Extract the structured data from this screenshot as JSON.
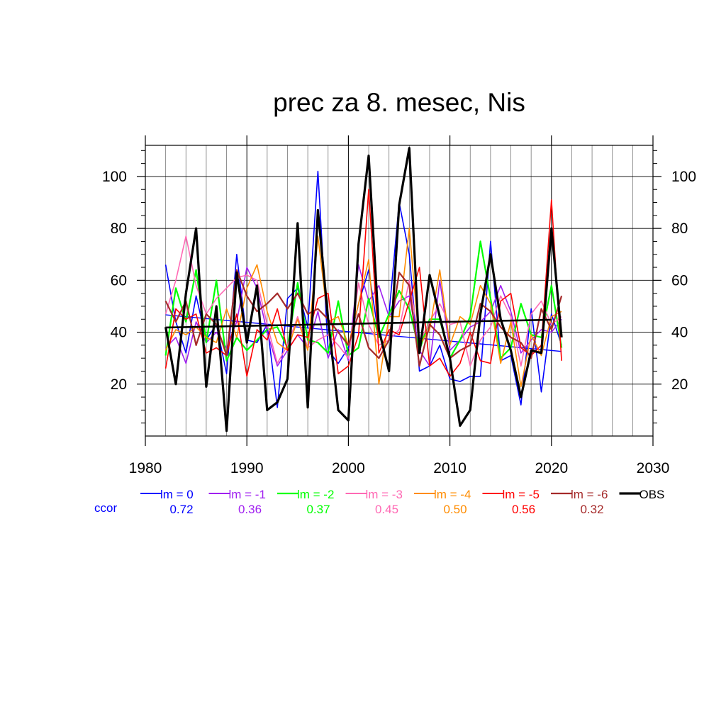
{
  "chart_data": {
    "type": "line",
    "title": "prec za 8. mesec, Nis",
    "xlabel": "",
    "ylabel": "",
    "xlim": [
      1980,
      2030
    ],
    "ylim": [
      0,
      112
    ],
    "x_ticks": [
      1980,
      1990,
      2000,
      2010,
      2020,
      2030
    ],
    "y_ticks": [
      20,
      40,
      60,
      80,
      100
    ],
    "grid": true,
    "legend_position": "bottom",
    "ccor_label": "ccor",
    "x": [
      1982,
      1983,
      1984,
      1985,
      1986,
      1987,
      1988,
      1989,
      1990,
      1991,
      1992,
      1993,
      1994,
      1995,
      1996,
      1997,
      1998,
      1999,
      2000,
      2001,
      2002,
      2003,
      2004,
      2005,
      2006,
      2007,
      2008,
      2009,
      2010,
      2011,
      2012,
      2013,
      2014,
      2015,
      2016,
      2017,
      2018,
      2019,
      2020,
      2021
    ],
    "series": [
      {
        "name": "lm = 0",
        "ccor": "0.72",
        "color": "#0000ff",
        "width": 1.6,
        "values": [
          66,
          44,
          32,
          54,
          37,
          43,
          24,
          70,
          37,
          36,
          43,
          11,
          53,
          57,
          42,
          102,
          33,
          28,
          34,
          51,
          64,
          38,
          47,
          90,
          70,
          25,
          27,
          35,
          22,
          21,
          23,
          23,
          75,
          29,
          31,
          12,
          49,
          17,
          47,
          35
        ],
        "trend": [
          46.7,
          32.6
        ]
      },
      {
        "name": "lm = -1",
        "ccor": "0.36",
        "color": "#a020f0",
        "width": 1.6,
        "values": [
          34,
          38,
          28,
          44,
          36,
          40,
          34,
          44,
          65,
          57,
          40,
          27,
          33,
          39,
          34,
          48,
          30,
          41,
          29,
          66,
          52,
          58,
          46,
          52,
          54,
          33,
          27,
          60,
          33,
          37,
          42,
          44,
          48,
          58,
          48,
          32,
          37,
          41,
          40,
          45
        ]
      },
      {
        "name": "lm = -2",
        "ccor": "0.37",
        "color": "#00ff00",
        "width": 2.2,
        "values": [
          31,
          57,
          44,
          64,
          36,
          60,
          29,
          38,
          33,
          37,
          41,
          42,
          34,
          59,
          37,
          36,
          32,
          52,
          31,
          34,
          53,
          38,
          47,
          56,
          49,
          33,
          45,
          45,
          30,
          37,
          46,
          75,
          53,
          30,
          34,
          51,
          39,
          38,
          58,
          34
        ]
      },
      {
        "name": "lm = -3",
        "ccor": "0.45",
        "color": "#ff69b4",
        "width": 1.6,
        "values": [
          47,
          60,
          77,
          58,
          47,
          53,
          57,
          61,
          62,
          60,
          43,
          28,
          35,
          46,
          34,
          37,
          39,
          35,
          30,
          59,
          43,
          35,
          37,
          41,
          60,
          36,
          44,
          51,
          43,
          44,
          27,
          37,
          42,
          54,
          46,
          27,
          47,
          52,
          43,
          46
        ]
      },
      {
        "name": "lm = -4",
        "ccor": "0.50",
        "color": "#ff8c00",
        "width": 1.6,
        "values": [
          33,
          41,
          39,
          42,
          38,
          36,
          49,
          38,
          57,
          66,
          48,
          36,
          33,
          45,
          33,
          77,
          44,
          46,
          35,
          51,
          68,
          20,
          46,
          46,
          80,
          35,
          41,
          64,
          35,
          46,
          43,
          58,
          51,
          28,
          44,
          19,
          39,
          31,
          46,
          48
        ]
      },
      {
        "name": "lm = -5",
        "ccor": "0.56",
        "color": "#ff0000",
        "width": 1.6,
        "values": [
          26,
          49,
          45,
          47,
          32,
          34,
          31,
          47,
          23,
          41,
          37,
          49,
          33,
          39,
          38,
          53,
          55,
          24,
          27,
          39,
          95,
          32,
          41,
          39,
          52,
          65,
          27,
          30,
          23,
          28,
          40,
          29,
          28,
          52,
          55,
          34,
          31,
          35,
          91,
          29
        ]
      },
      {
        "name": "lm = -6",
        "ccor": "0.32",
        "color": "#a52a2a",
        "width": 2.2,
        "values": [
          52,
          44,
          52,
          35,
          47,
          43,
          31,
          64,
          54,
          48,
          51,
          55,
          49,
          55,
          47,
          49,
          45,
          40,
          35,
          47,
          34,
          30,
          37,
          63,
          58,
          27,
          43,
          39,
          30,
          33,
          35,
          51,
          48,
          42,
          38,
          36,
          30,
          49,
          41,
          54
        ]
      },
      {
        "name": "OBS",
        "ccor": "",
        "color": "#000000",
        "width": 3.2,
        "values": [
          42,
          20,
          55,
          80,
          19,
          50,
          2,
          63,
          36,
          58,
          10,
          13,
          22,
          82,
          11,
          87,
          45,
          10,
          6,
          74,
          108,
          41,
          25,
          89,
          111,
          32,
          62,
          46,
          30,
          4,
          10,
          47,
          70,
          45,
          33,
          15,
          33,
          32,
          80,
          38
        ],
        "trend": [
          41.8,
          44.8
        ]
      }
    ]
  }
}
